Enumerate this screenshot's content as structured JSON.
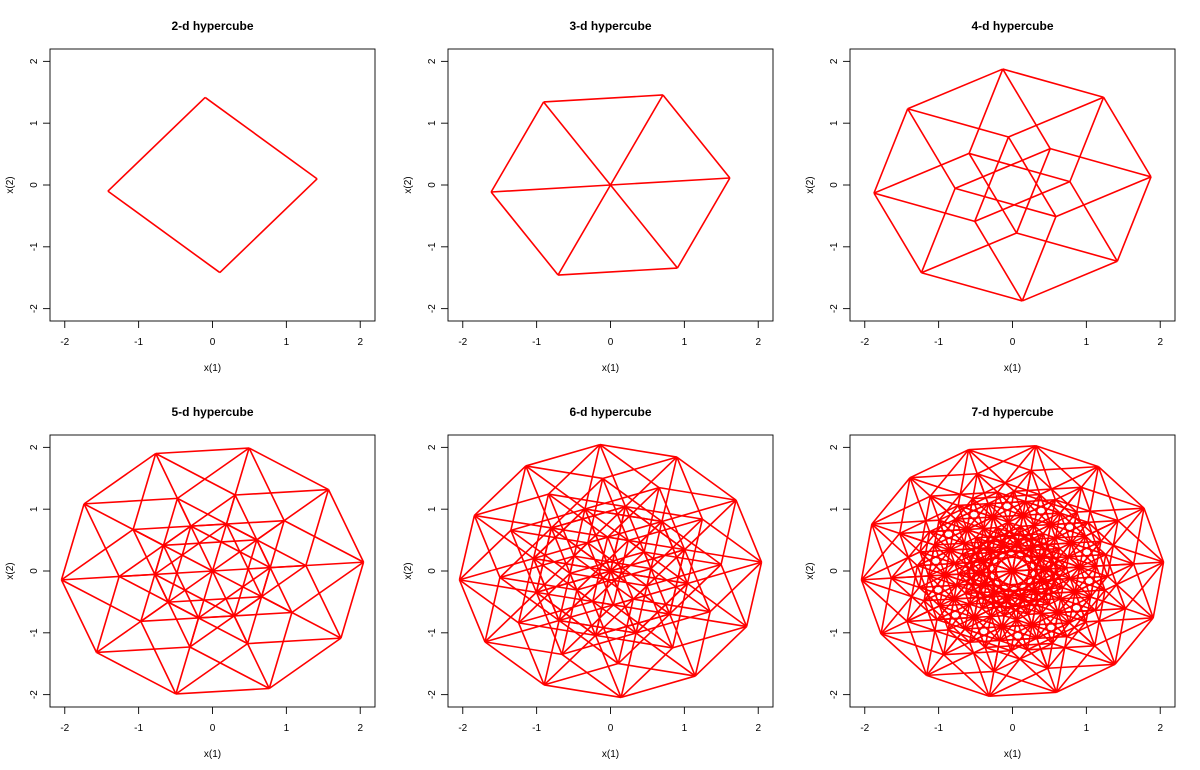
{
  "chart_data": [
    {
      "type": "line",
      "title": "2-d hypercube",
      "dimension": 2,
      "xlabel": "x(1)",
      "ylabel": "x(2)",
      "xlim": [
        -2.2,
        2.2
      ],
      "ylim": [
        -2.2,
        2.2
      ],
      "xticks": [
        -2,
        -1,
        0,
        1,
        2
      ],
      "yticks": [
        -2,
        -1,
        0,
        1,
        2
      ],
      "color": "#ff0000"
    },
    {
      "type": "line",
      "title": "3-d hypercube",
      "dimension": 3,
      "xlabel": "x(1)",
      "ylabel": "x(2)",
      "xlim": [
        -2.2,
        2.2
      ],
      "ylim": [
        -2.2,
        2.2
      ],
      "xticks": [
        -2,
        -1,
        0,
        1,
        2
      ],
      "yticks": [
        -2,
        -1,
        0,
        1,
        2
      ],
      "color": "#ff0000"
    },
    {
      "type": "line",
      "title": "4-d hypercube",
      "dimension": 4,
      "xlabel": "x(1)",
      "ylabel": "x(2)",
      "xlim": [
        -2.2,
        2.2
      ],
      "ylim": [
        -2.2,
        2.2
      ],
      "xticks": [
        -2,
        -1,
        0,
        1,
        2
      ],
      "yticks": [
        -2,
        -1,
        0,
        1,
        2
      ],
      "color": "#ff0000"
    },
    {
      "type": "line",
      "title": "5-d hypercube",
      "dimension": 5,
      "xlabel": "x(1)",
      "ylabel": "x(2)",
      "xlim": [
        -2.2,
        2.2
      ],
      "ylim": [
        -2.2,
        2.2
      ],
      "xticks": [
        -2,
        -1,
        0,
        1,
        2
      ],
      "yticks": [
        -2,
        -1,
        0,
        1,
        2
      ],
      "color": "#ff0000"
    },
    {
      "type": "line",
      "title": "6-d hypercube",
      "dimension": 6,
      "xlabel": "x(1)",
      "ylabel": "x(2)",
      "xlim": [
        -2.2,
        2.2
      ],
      "ylim": [
        -2.2,
        2.2
      ],
      "xticks": [
        -2,
        -1,
        0,
        1,
        2
      ],
      "yticks": [
        -2,
        -1,
        0,
        1,
        2
      ],
      "color": "#ff0000"
    },
    {
      "type": "line",
      "title": "7-d hypercube",
      "dimension": 7,
      "xlabel": "x(1)",
      "ylabel": "x(2)",
      "xlim": [
        -2.2,
        2.2
      ],
      "ylim": [
        -2.2,
        2.2
      ],
      "xticks": [
        -2,
        -1,
        0,
        1,
        2
      ],
      "yticks": [
        -2,
        -1,
        0,
        1,
        2
      ],
      "color": "#ff0000"
    }
  ]
}
